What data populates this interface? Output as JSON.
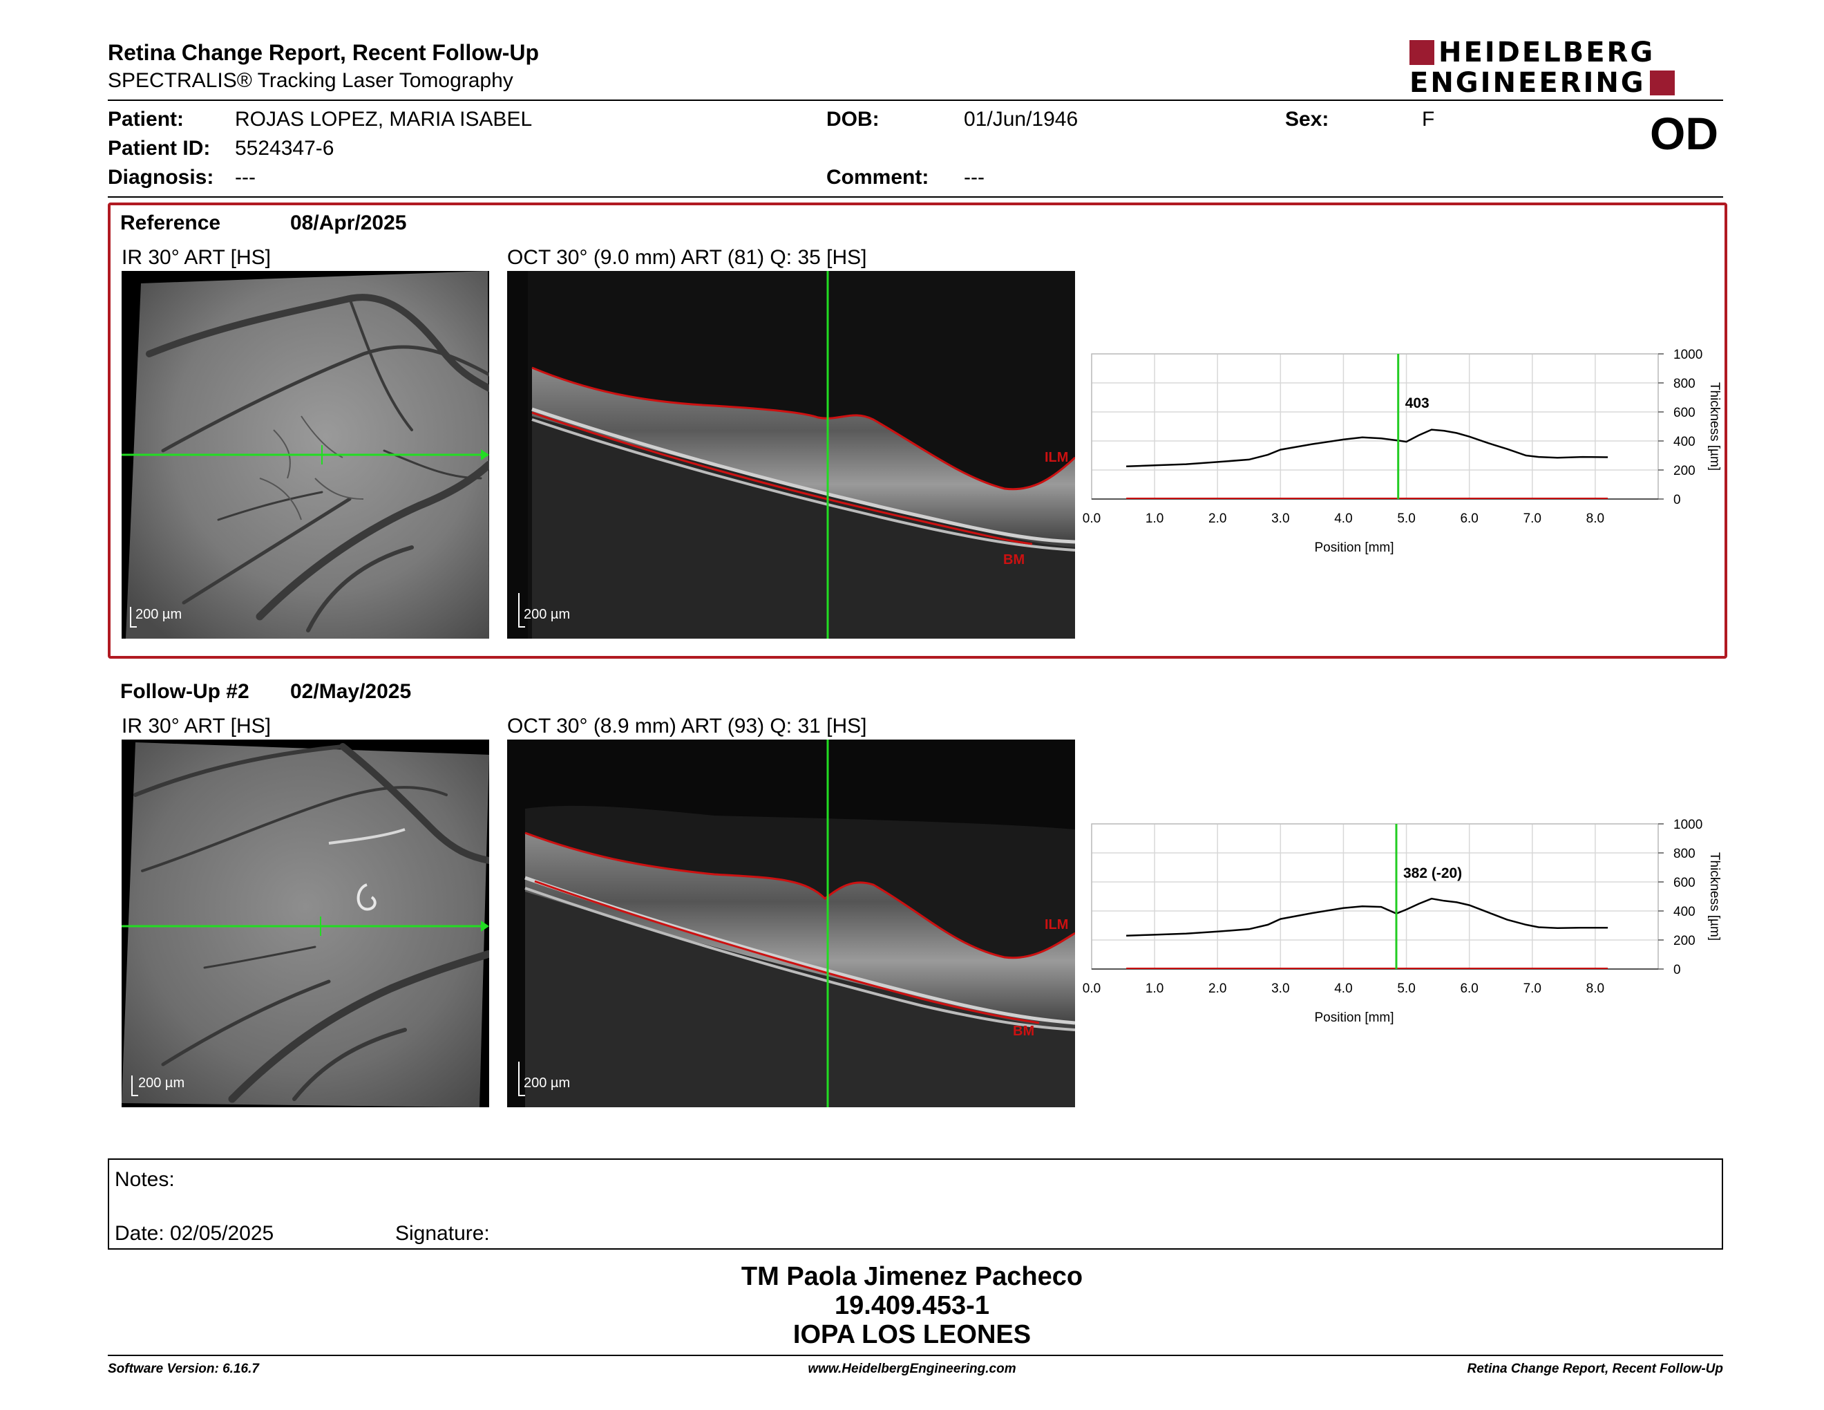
{
  "header": {
    "title": "Retina Change Report, Recent Follow-Up",
    "subtitle": "SPECTRALIS® Tracking Laser Tomography",
    "logo_line1": "HEIDELBERG",
    "logo_line2": "ENGINEERING"
  },
  "patient": {
    "patient_label": "Patient:",
    "patient_value": "ROJAS LOPEZ, MARIA ISABEL",
    "id_label": "Patient ID:",
    "id_value": "5524347-6",
    "diagnosis_label": "Diagnosis:",
    "diagnosis_value": "---",
    "dob_label": "DOB:",
    "dob_value": "01/Jun/1946",
    "comment_label": "Comment:",
    "comment_value": "---",
    "sex_label": "Sex:",
    "sex_value": "F",
    "eye": "OD"
  },
  "reference": {
    "label": "Reference",
    "date": "08/Apr/2025",
    "ir_title": "IR 30° ART [HS]",
    "oct_title": "OCT 30° (9.0 mm) ART (81) Q: 35 [HS]",
    "scale_ir": "200 µm",
    "scale_oct": "200 µm",
    "ilm": "ILM",
    "bm": "BM",
    "marker_value": "403"
  },
  "followup": {
    "label": "Follow-Up #2",
    "date": "02/May/2025",
    "ir_title": "IR 30° ART [HS]",
    "oct_title": "OCT 30° (8.9 mm) ART (93) Q: 31 [HS]",
    "scale_ir": "200 µm",
    "scale_oct": "200 µm",
    "ilm": "ILM",
    "bm": "BM",
    "marker_value": "382 (-20)"
  },
  "chart_data": [
    {
      "type": "line",
      "xlabel": "Position [mm]",
      "ylabel": "Thickness [µm]",
      "xticks": [
        "0.0",
        "1.0",
        "2.0",
        "3.0",
        "4.0",
        "5.0",
        "6.0",
        "7.0",
        "8.0"
      ],
      "yticks": [
        "0",
        "200",
        "400",
        "600",
        "800",
        "1000"
      ],
      "xlim": [
        0,
        9.0
      ],
      "ylim": [
        0,
        1000
      ],
      "marker_x": 4.87,
      "annotation": "403",
      "series": [
        {
          "x": [
            0.55,
            1.0,
            1.5,
            2.0,
            2.5,
            2.8,
            3.0,
            3.5,
            4.0,
            4.3,
            4.6,
            4.87,
            5.0,
            5.2,
            5.4,
            5.6,
            5.8,
            6.0,
            6.3,
            6.6,
            6.9,
            7.1,
            7.4,
            7.8,
            8.2
          ],
          "y": [
            225,
            232,
            240,
            255,
            272,
            305,
            340,
            378,
            410,
            425,
            418,
            403,
            395,
            440,
            478,
            470,
            455,
            430,
            385,
            345,
            300,
            290,
            285,
            290,
            288
          ]
        }
      ]
    },
    {
      "type": "line",
      "xlabel": "Position [mm]",
      "ylabel": "Thickness [µm]",
      "xticks": [
        "0.0",
        "1.0",
        "2.0",
        "3.0",
        "4.0",
        "5.0",
        "6.0",
        "7.0",
        "8.0"
      ],
      "yticks": [
        "0",
        "200",
        "400",
        "600",
        "800",
        "1000"
      ],
      "xlim": [
        0,
        9.0
      ],
      "ylim": [
        0,
        1000
      ],
      "marker_x": 4.84,
      "annotation": "382 (-20)",
      "series": [
        {
          "x": [
            0.55,
            1.0,
            1.5,
            2.0,
            2.5,
            2.8,
            3.0,
            3.5,
            4.0,
            4.3,
            4.6,
            4.84,
            5.0,
            5.2,
            5.4,
            5.6,
            5.8,
            6.0,
            6.3,
            6.6,
            6.9,
            7.1,
            7.4,
            7.8,
            8.2
          ],
          "y": [
            230,
            236,
            244,
            258,
            275,
            305,
            345,
            385,
            420,
            432,
            428,
            382,
            410,
            450,
            485,
            470,
            460,
            440,
            390,
            340,
            305,
            288,
            282,
            285,
            285
          ]
        }
      ]
    }
  ],
  "notes": {
    "notes_label": "Notes:",
    "date_label": "Date: 02/05/2025",
    "signature_label": "Signature:"
  },
  "signer": {
    "name": "TM Paola Jimenez Pacheco",
    "rut": "19.409.453-1",
    "place": "IOPA LOS LEONES"
  },
  "footer": {
    "software": "Software Version: 6.16.7",
    "url": "www.HeidelbergEngineering.com",
    "report": "Retina Change Report, Recent Follow-Up"
  },
  "colors": {
    "accent": "#b11a22",
    "green": "#22cc22",
    "ilm_red": "#cc1111"
  }
}
